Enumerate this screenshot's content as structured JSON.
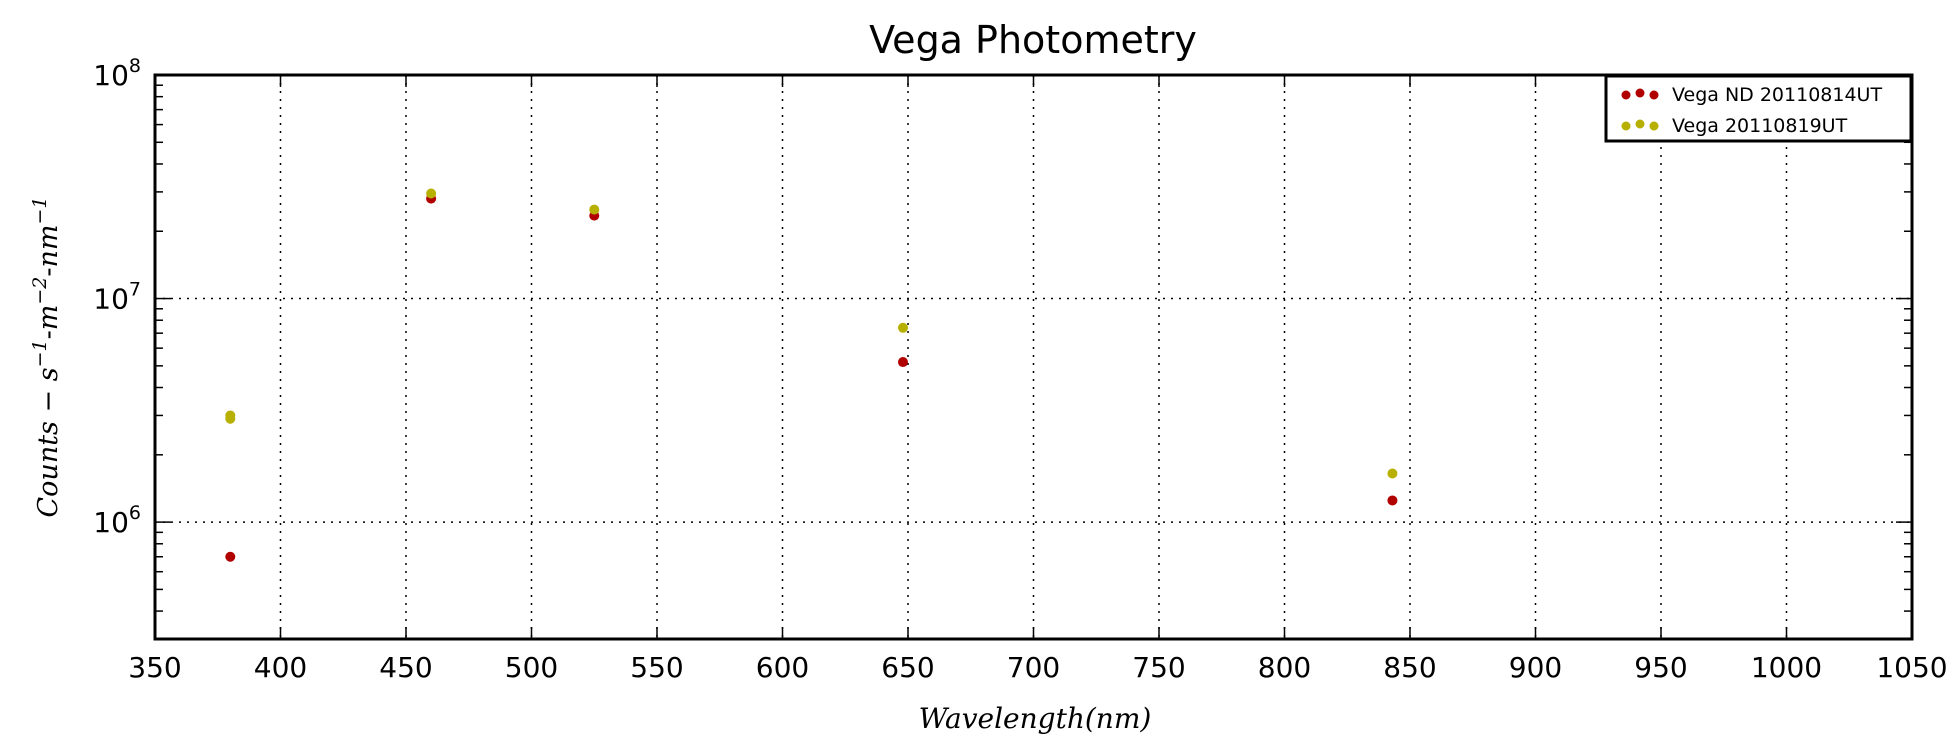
{
  "chart_data": {
    "type": "scatter",
    "title": "Vega Photometry",
    "xlabel": "Wavelength(nm)",
    "ylabel_parts": [
      "Counts",
      " − ",
      "s",
      "−1",
      "-",
      "m",
      "−2",
      "-",
      "nm",
      "−1"
    ],
    "xlim": [
      350,
      1050
    ],
    "ylim": [
      300000,
      100000000
    ],
    "yscale": "log",
    "x_ticks": [
      350,
      400,
      450,
      500,
      550,
      600,
      650,
      700,
      750,
      800,
      850,
      900,
      950,
      1000,
      1050
    ],
    "y_ticks": [
      {
        "value": 1000000,
        "base": "10",
        "exp": "6"
      },
      {
        "value": 10000000,
        "base": "10",
        "exp": "7"
      },
      {
        "value": 100000000,
        "base": "10",
        "exp": "8"
      }
    ],
    "grid": true,
    "legend_position": "top-right",
    "series": [
      {
        "name": "Vega ND 20110814UT",
        "color": "#b00000",
        "points": [
          {
            "x": 380,
            "y": 700000
          },
          {
            "x": 460,
            "y": 28000000
          },
          {
            "x": 525,
            "y": 23500000
          },
          {
            "x": 648,
            "y": 5200000
          },
          {
            "x": 843,
            "y": 1250000
          }
        ]
      },
      {
        "name": "Vega 20110819UT",
        "color": "#b8b000",
        "points": [
          {
            "x": 380,
            "y": 3000000
          },
          {
            "x": 380,
            "y": 2900000
          },
          {
            "x": 460,
            "y": 29500000
          },
          {
            "x": 525,
            "y": 25000000
          },
          {
            "x": 648,
            "y": 7400000
          },
          {
            "x": 843,
            "y": 1650000
          }
        ]
      }
    ]
  }
}
